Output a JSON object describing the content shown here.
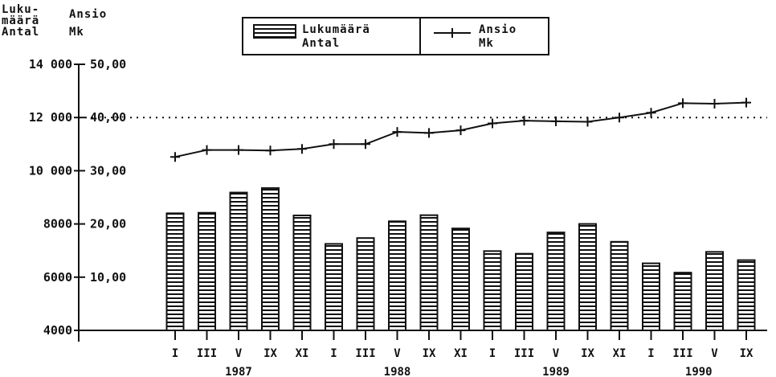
{
  "header": {
    "left_axis_title": [
      "Luku-",
      "määrä",
      "Antal"
    ],
    "right_axis_title": [
      "Ansio",
      "Mk"
    ]
  },
  "legend": {
    "bars_label": [
      "Lukumäärä",
      "Antal"
    ],
    "line_label": [
      "Ansio",
      "Mk"
    ]
  },
  "chart_data": {
    "type": "bar",
    "categories": [
      "I",
      "III",
      "V",
      "IX",
      "XI",
      "I",
      "III",
      "V",
      "IX",
      "XI",
      "I",
      "III",
      "V",
      "IX",
      "XI",
      "I",
      "III",
      "V",
      "IX"
    ],
    "years": [
      {
        "label": "1987",
        "start": 0,
        "end": 4
      },
      {
        "label": "1988",
        "start": 5,
        "end": 9
      },
      {
        "label": "1989",
        "start": 10,
        "end": 14
      },
      {
        "label": "1990",
        "start": 15,
        "end": 18
      }
    ],
    "series": [
      {
        "name": "Lukumäärä Antal",
        "type": "bar",
        "axis": "left",
        "values": [
          8400,
          8420,
          9180,
          9350,
          8320,
          7250,
          7470,
          8100,
          8330,
          7830,
          6980,
          6880,
          7680,
          8000,
          7330,
          6520,
          6170,
          6950,
          6640
        ]
      },
      {
        "name": "Ansio Mk",
        "type": "line",
        "axis": "right",
        "values": [
          32.6,
          33.9,
          33.9,
          33.8,
          34.1,
          35.0,
          35.0,
          37.3,
          37.1,
          37.6,
          38.9,
          39.4,
          39.3,
          39.2,
          40.0,
          40.9,
          42.7,
          42.6,
          42.8
        ]
      }
    ],
    "left_axis": {
      "ticks": [
        4000,
        6000,
        8000,
        10000,
        12000,
        14000
      ],
      "tick_labels": [
        "4000",
        "6000",
        "8000",
        "10 000",
        "12 000",
        "14 000"
      ],
      "range": [
        4000,
        14000
      ]
    },
    "right_axis": {
      "ticks": [
        10,
        20,
        30,
        40,
        50
      ],
      "tick_labels": [
        "10,00",
        "20,00",
        "30,00",
        "40,00",
        "50,00"
      ],
      "range": [
        0,
        50
      ]
    },
    "reference_line": {
      "value": 12000,
      "style": "dotted"
    },
    "legend_position": "top-center"
  }
}
